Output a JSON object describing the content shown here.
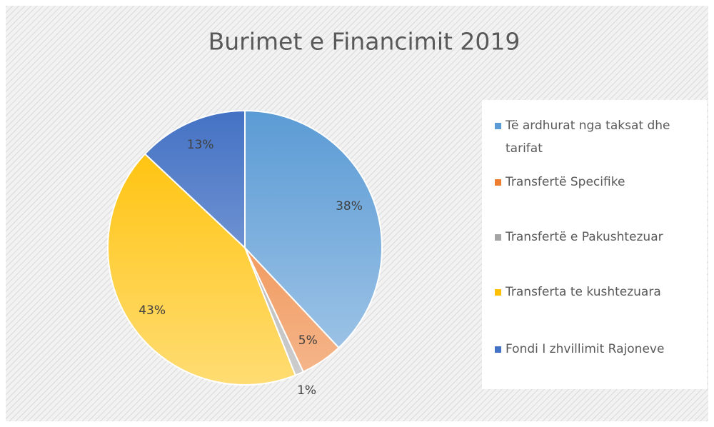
{
  "chart_data": {
    "type": "pie",
    "title": "Burimet e Financimit 2019",
    "categories": [
      "Të ardhurat nga taksat dhe tarifat",
      "Transfertë Specifike",
      "Transfertë e Pakushtezuar",
      "Transferta te kushtezuara",
      "Fondi I zhvillimit Rajoneve"
    ],
    "values": [
      38,
      5,
      1,
      43,
      13
    ],
    "value_labels": [
      "38%",
      "5%",
      "1%",
      "43%",
      "13%"
    ],
    "colors": [
      "#5b9bd5",
      "#ed7d31",
      "#a5a5a5",
      "#ffc000",
      "#4472c4"
    ],
    "legend": "right"
  }
}
